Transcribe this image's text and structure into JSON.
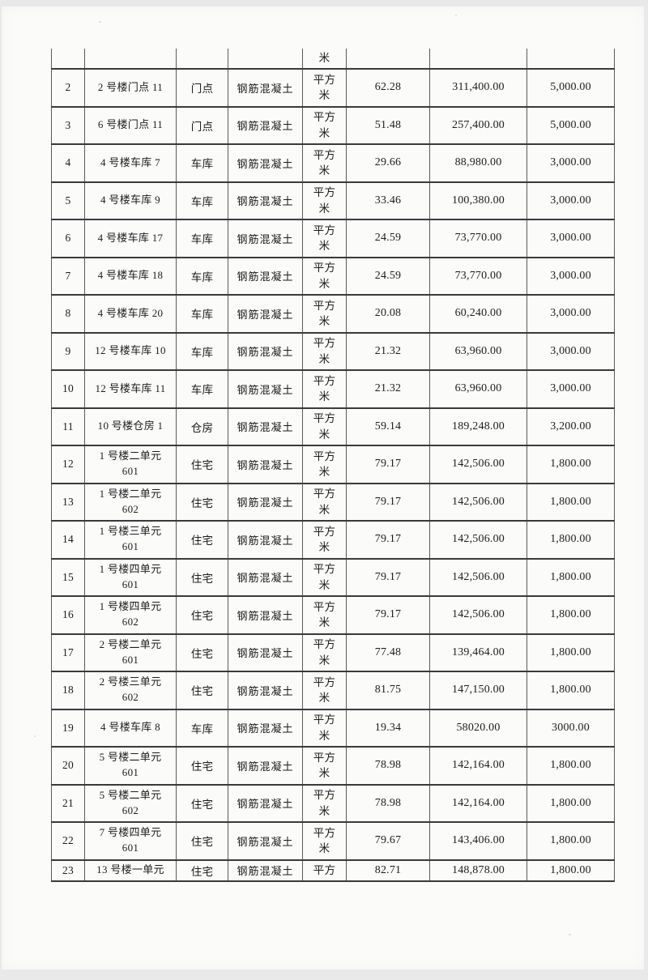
{
  "page": {
    "background_color": "#e9e9e9",
    "paper_color": "#fbfbfa",
    "ink_color": "#1d1d1d",
    "border_color": "#3a3a3a"
  },
  "table": {
    "continuation_row": {
      "unit": "米"
    },
    "rows": [
      {
        "no": "2",
        "name": "2 号楼门点 11",
        "type": "门点",
        "material": "钢筋混凝土",
        "unit": "平方\n米",
        "area": "62.28",
        "total": "311,400.00",
        "price": "5,000.00",
        "short": false
      },
      {
        "no": "3",
        "name": "6 号楼门点 11",
        "type": "门点",
        "material": "钢筋混凝土",
        "unit": "平方\n米",
        "area": "51.48",
        "total": "257,400.00",
        "price": "5,000.00",
        "short": false
      },
      {
        "no": "4",
        "name": "4 号楼车库 7",
        "type": "车库",
        "material": "钢筋混凝土",
        "unit": "平方\n米",
        "area": "29.66",
        "total": "88,980.00",
        "price": "3,000.00",
        "short": false
      },
      {
        "no": "5",
        "name": "4 号楼车库 9",
        "type": "车库",
        "material": "钢筋混凝土",
        "unit": "平方\n米",
        "area": "33.46",
        "total": "100,380.00",
        "price": "3,000.00",
        "short": false
      },
      {
        "no": "6",
        "name": "4 号楼车库 17",
        "type": "车库",
        "material": "钢筋混凝土",
        "unit": "平方\n米",
        "area": "24.59",
        "total": "73,770.00",
        "price": "3,000.00",
        "short": false
      },
      {
        "no": "7",
        "name": "4 号楼车库 18",
        "type": "车库",
        "material": "钢筋混凝土",
        "unit": "平方\n米",
        "area": "24.59",
        "total": "73,770.00",
        "price": "3,000.00",
        "short": false
      },
      {
        "no": "8",
        "name": "4 号楼车库 20",
        "type": "车库",
        "material": "钢筋混凝土",
        "unit": "平方\n米",
        "area": "20.08",
        "total": "60,240.00",
        "price": "3,000.00",
        "short": false
      },
      {
        "no": "9",
        "name": "12 号楼车库 10",
        "type": "车库",
        "material": "钢筋混凝土",
        "unit": "平方\n米",
        "area": "21.32",
        "total": "63,960.00",
        "price": "3,000.00",
        "short": false
      },
      {
        "no": "10",
        "name": "12 号楼车库 11",
        "type": "车库",
        "material": "钢筋混凝土",
        "unit": "平方\n米",
        "area": "21.32",
        "total": "63,960.00",
        "price": "3,000.00",
        "short": false
      },
      {
        "no": "11",
        "name": "10 号楼仓房 1",
        "type": "仓房",
        "material": "钢筋混凝土",
        "unit": "平方\n米",
        "area": "59.14",
        "total": "189,248.00",
        "price": "3,200.00",
        "short": false
      },
      {
        "no": "12",
        "name": "1 号楼二单元\n601",
        "type": "住宅",
        "material": "钢筋混凝土",
        "unit": "平方\n米",
        "area": "79.17",
        "total": "142,506.00",
        "price": "1,800.00",
        "short": false
      },
      {
        "no": "13",
        "name": "1 号楼二单元\n602",
        "type": "住宅",
        "material": "钢筋混凝土",
        "unit": "平方\n米",
        "area": "79.17",
        "total": "142,506.00",
        "price": "1,800.00",
        "short": false
      },
      {
        "no": "14",
        "name": "1 号楼三单元\n601",
        "type": "住宅",
        "material": "钢筋混凝土",
        "unit": "平方\n米",
        "area": "79.17",
        "total": "142,506.00",
        "price": "1,800.00",
        "short": false
      },
      {
        "no": "15",
        "name": "1 号楼四单元\n601",
        "type": "住宅",
        "material": "钢筋混凝土",
        "unit": "平方\n米",
        "area": "79.17",
        "total": "142,506.00",
        "price": "1,800.00",
        "short": false
      },
      {
        "no": "16",
        "name": "1 号楼四单元\n602",
        "type": "住宅",
        "material": "钢筋混凝土",
        "unit": "平方\n米",
        "area": "79.17",
        "total": "142,506.00",
        "price": "1,800.00",
        "short": false
      },
      {
        "no": "17",
        "name": "2 号楼二单元\n601",
        "type": "住宅",
        "material": "钢筋混凝土",
        "unit": "平方\n米",
        "area": "77.48",
        "total": "139,464.00",
        "price": "1,800.00",
        "short": false
      },
      {
        "no": "18",
        "name": "2 号楼三单元\n602",
        "type": "住宅",
        "material": "钢筋混凝土",
        "unit": "平方\n米",
        "area": "81.75",
        "total": "147,150.00",
        "price": "1,800.00",
        "short": false
      },
      {
        "no": "19",
        "name": "4 号楼车库 8",
        "type": "车库",
        "material": "钢筋混凝土",
        "unit": "平方\n米",
        "area": "19.34",
        "total": "58020.00",
        "price": "3000.00",
        "short": false
      },
      {
        "no": "20",
        "name": "5 号楼二单元\n601",
        "type": "住宅",
        "material": "钢筋混凝土",
        "unit": "平方\n米",
        "area": "78.98",
        "total": "142,164.00",
        "price": "1,800.00",
        "short": false
      },
      {
        "no": "21",
        "name": "5 号楼二单元\n602",
        "type": "住宅",
        "material": "钢筋混凝土",
        "unit": "平方\n米",
        "area": "78.98",
        "total": "142,164.00",
        "price": "1,800.00",
        "short": false
      },
      {
        "no": "22",
        "name": "7 号楼四单元\n601",
        "type": "住宅",
        "material": "钢筋混凝土",
        "unit": "平方\n米",
        "area": "79.67",
        "total": "143,406.00",
        "price": "1,800.00",
        "short": false
      },
      {
        "no": "23",
        "name": "13 号楼一单元",
        "type": "住宅",
        "material": "钢筋混凝土",
        "unit": "平方",
        "area": "82.71",
        "total": "148,878.00",
        "price": "1,800.00",
        "short": true
      }
    ]
  }
}
